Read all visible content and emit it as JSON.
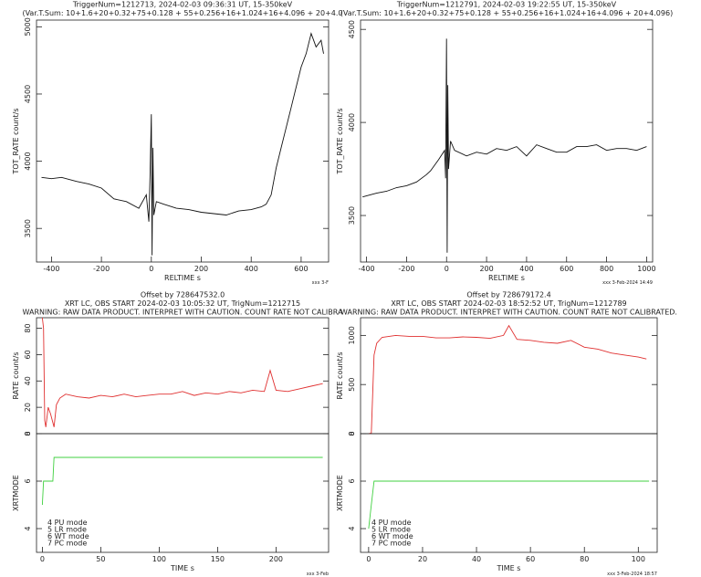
{
  "chart_data": [
    {
      "type": "line",
      "title_lines": [
        "TriggerNum=1212713, 2024-02-03 09:36:31 UT, 15-350keV",
        "(Var.T.Sum: 10+1.6+20+0.32+75+0.128  +  55+0.256+16+1.024+16+4.096  +  20+4.0"
      ],
      "xlabel": "RELTIME  s",
      "ylabel": "TOT_RATE  count/s",
      "footer": "xxx  3-F",
      "xlim": [
        -460,
        710
      ],
      "xticks": [
        -400,
        -200,
        0,
        200,
        400,
        600
      ],
      "ylim": [
        3250,
        5050
      ],
      "yticks": [
        3500,
        4000,
        4500,
        5000
      ],
      "series": [
        {
          "color": "#111111",
          "x": [
            -440,
            -400,
            -360,
            -300,
            -250,
            -200,
            -150,
            -100,
            -50,
            -20,
            -10,
            -5,
            0,
            3,
            6,
            10,
            20,
            50,
            100,
            150,
            200,
            250,
            300,
            350,
            400,
            440,
            460,
            480,
            500,
            520,
            540,
            560,
            580,
            600,
            620,
            640,
            660,
            680,
            690
          ],
          "values": [
            3880,
            3870,
            3880,
            3850,
            3830,
            3800,
            3720,
            3700,
            3650,
            3750,
            3550,
            3900,
            4350,
            3300,
            4100,
            3600,
            3700,
            3680,
            3650,
            3640,
            3620,
            3610,
            3600,
            3630,
            3640,
            3660,
            3680,
            3750,
            3950,
            4100,
            4250,
            4400,
            4550,
            4700,
            4800,
            4950,
            4850,
            4900,
            4800
          ]
        }
      ]
    },
    {
      "type": "line",
      "title_lines": [
        "TriggerNum=1212791, 2024-02-03 19:22:55 UT, 15-350keV",
        "(Var.T.Sum: 10+1.6+20+0.32+75+0.128  +  55+0.256+16+1.024+16+4.096  +  20+4.096)"
      ],
      "xlabel": "RELTIME  s",
      "ylabel": "TOT_RATE  count/s",
      "footer": "xxx  3-Feb-2024 14:49",
      "xlim": [
        -430,
        1030
      ],
      "xticks": [
        -400,
        -200,
        0,
        200,
        400,
        600,
        800,
        1000
      ],
      "ylim": [
        3250,
        4550
      ],
      "yticks": [
        3500,
        4000,
        4500
      ],
      "series": [
        {
          "color": "#111111",
          "x": [
            -420,
            -350,
            -300,
            -250,
            -200,
            -150,
            -100,
            -80,
            -40,
            -10,
            -5,
            0,
            3,
            6,
            10,
            20,
            40,
            100,
            150,
            200,
            250,
            300,
            350,
            400,
            450,
            500,
            550,
            600,
            650,
            700,
            750,
            800,
            850,
            900,
            950,
            1000
          ],
          "values": [
            3600,
            3620,
            3630,
            3650,
            3660,
            3680,
            3720,
            3740,
            3800,
            3850,
            3700,
            4450,
            3300,
            4200,
            3750,
            3900,
            3850,
            3820,
            3840,
            3830,
            3860,
            3850,
            3870,
            3820,
            3880,
            3860,
            3840,
            3840,
            3870,
            3870,
            3880,
            3850,
            3860,
            3860,
            3850,
            3870
          ]
        }
      ]
    },
    {
      "type": "line",
      "title_lines": [
        "Offset by 728647532.0",
        "XRT LC, OBS START 2024-02-03 10:05:32 UT, TrigNum=1212715",
        "WARNING: RAW DATA PRODUCT. INTERPRET WITH CAUTION. COUNT RATE NOT CALIBRA"
      ],
      "ylabel": "RATE  count/s",
      "xlim": [
        -5,
        245
      ],
      "ylim": [
        0,
        88
      ],
      "yticks": [
        0,
        20,
        40,
        60,
        80
      ],
      "series": [
        {
          "color": "#e03030",
          "x": [
            0,
            1,
            2,
            3,
            5,
            7,
            10,
            12,
            15,
            20,
            30,
            40,
            50,
            60,
            70,
            80,
            90,
            100,
            110,
            120,
            130,
            140,
            150,
            160,
            170,
            180,
            190,
            195,
            200,
            210,
            220,
            230,
            240
          ],
          "values": [
            88,
            80,
            10,
            5,
            20,
            15,
            5,
            22,
            27,
            30,
            28,
            27,
            29,
            28,
            30,
            28,
            29,
            30,
            30,
            32,
            29,
            31,
            30,
            32,
            31,
            33,
            32,
            48,
            33,
            32,
            34,
            36,
            38
          ]
        }
      ]
    },
    {
      "type": "line",
      "ylabel": "XRTMODE",
      "xlabel": "TIME  s",
      "footer": "xxx  3-Feb",
      "annotations": [
        "4  PU  mode",
        "5  LR  mode",
        "6  WT  mode",
        "7  PC  mode"
      ],
      "xlim": [
        -5,
        245
      ],
      "xticks": [
        0,
        50,
        100,
        150,
        200
      ],
      "ylim": [
        3,
        8
      ],
      "yticks": [
        4,
        6,
        8
      ],
      "series": [
        {
          "color": "#40d040",
          "x": [
            0,
            1,
            2,
            9,
            10,
            240
          ],
          "values": [
            5,
            6,
            6,
            6,
            7,
            7
          ]
        }
      ]
    },
    {
      "type": "line",
      "title_lines": [
        "Offset by 728679172.4",
        "XRT LC, OBS START 2024-02-03 18:52:52 UT, TrigNum=1212789",
        "WARNING: RAW DATA PRODUCT. INTERPRET WITH CAUTION. COUNT RATE NOT CALIBRATED."
      ],
      "ylabel": "RATE  count/s",
      "xlim": [
        -3,
        107
      ],
      "ylim": [
        0,
        1180
      ],
      "yticks": [
        0,
        500,
        1000
      ],
      "series": [
        {
          "color": "#e03030",
          "x": [
            0,
            1,
            2,
            3,
            5,
            10,
            15,
            20,
            25,
            30,
            35,
            40,
            45,
            50,
            52,
            55,
            60,
            65,
            70,
            75,
            80,
            85,
            90,
            95,
            100,
            103
          ],
          "values": [
            0,
            5,
            800,
            920,
            980,
            1000,
            990,
            990,
            975,
            975,
            985,
            980,
            970,
            1000,
            1100,
            960,
            950,
            930,
            920,
            950,
            880,
            860,
            820,
            800,
            780,
            760
          ]
        }
      ]
    },
    {
      "type": "line",
      "ylabel": "XRTMODE",
      "xlabel": "TIME  s",
      "footer": "xxx  3-Feb-2024 18:57",
      "annotations": [
        "4  PU  mode",
        "5  LR  mode",
        "6  WT  mode",
        "7  PC  mode"
      ],
      "xlim": [
        -3,
        107
      ],
      "xticks": [
        0,
        20,
        40,
        60,
        80,
        100
      ],
      "ylim": [
        3,
        8
      ],
      "yticks": [
        4,
        6,
        8
      ],
      "series": [
        {
          "color": "#40d040",
          "x": [
            0,
            1,
            2,
            104
          ],
          "values": [
            4,
            5,
            6,
            6
          ]
        }
      ]
    }
  ]
}
